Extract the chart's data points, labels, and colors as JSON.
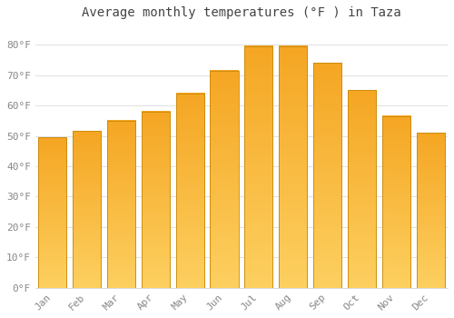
{
  "title": "Average monthly temperatures (°F ) in Taza",
  "months": [
    "Jan",
    "Feb",
    "Mar",
    "Apr",
    "May",
    "Jun",
    "Jul",
    "Aug",
    "Sep",
    "Oct",
    "Nov",
    "Dec"
  ],
  "values": [
    49.5,
    51.5,
    55.0,
    58.0,
    64.0,
    71.5,
    79.5,
    79.5,
    74.0,
    65.0,
    56.5,
    51.0
  ],
  "bar_color_top": "#F5A623",
  "bar_color_bottom": "#FDD060",
  "bar_edge_color": "#C8880A",
  "background_color": "#FFFFFF",
  "grid_color": "#E0E0E0",
  "text_color": "#888888",
  "ylim": [
    0,
    86
  ],
  "yticks": [
    0,
    10,
    20,
    30,
    40,
    50,
    60,
    70,
    80
  ],
  "ytick_labels": [
    "0°F",
    "10°F",
    "20°F",
    "30°F",
    "40°F",
    "50°F",
    "60°F",
    "70°F",
    "80°F"
  ],
  "title_fontsize": 10,
  "tick_fontsize": 8,
  "bar_width": 0.82
}
